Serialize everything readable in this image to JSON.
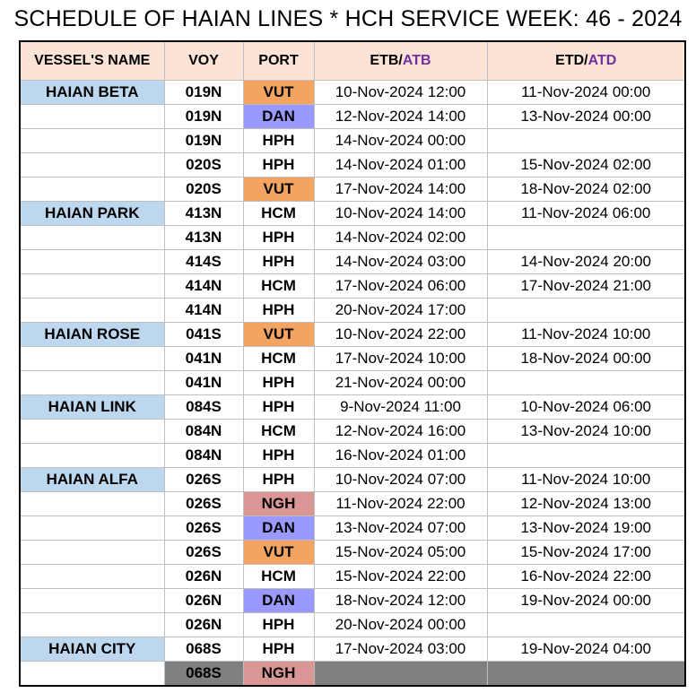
{
  "title": "SCHEDULE OF HAIAN LINES * HCH SERVICE WEEK: 46 - 2024",
  "colors": {
    "header_bg": "#fbe4d5",
    "vessel_bg": "#bdd7ee",
    "VUT": "#f4a460",
    "DAN": "#9999ff",
    "NGH": "#d99694",
    "blank_bg": "#808080",
    "atb_atd": "#7030a0"
  },
  "headers": {
    "vessel": "VESSEL'S NAME",
    "voy": "VOY",
    "port": "PORT",
    "etb": "ETB/",
    "atb": "ATB",
    "etd": "ETD/",
    "atd": "ATD"
  },
  "rows": [
    {
      "vessel": "HAIAN BETA",
      "voy": "019N",
      "port": "VUT",
      "etb": "10-Nov-2024 12:00",
      "etd": "11-Nov-2024 00:00"
    },
    {
      "vessel": "",
      "voy": "019N",
      "port": "DAN",
      "etb": "12-Nov-2024 14:00",
      "etd": "13-Nov-2024 00:00"
    },
    {
      "vessel": "",
      "voy": "019N",
      "port": "HPH",
      "etb": "14-Nov-2024 00:00",
      "etd": ""
    },
    {
      "vessel": "",
      "voy": "020S",
      "port": "HPH",
      "etb": "14-Nov-2024 01:00",
      "etd": "15-Nov-2024 02:00"
    },
    {
      "vessel": "",
      "voy": "020S",
      "port": "VUT",
      "etb": "17-Nov-2024 14:00",
      "etd": "18-Nov-2024 02:00"
    },
    {
      "vessel": "HAIAN PARK",
      "voy": "413N",
      "port": "HCM",
      "etb": "10-Nov-2024 14:00",
      "etd": "11-Nov-2024 06:00"
    },
    {
      "vessel": "",
      "voy": "413N",
      "port": "HPH",
      "etb": "14-Nov-2024 02:00",
      "etd": ""
    },
    {
      "vessel": "",
      "voy": "414S",
      "port": "HPH",
      "etb": "14-Nov-2024 03:00",
      "etd": "14-Nov-2024 20:00"
    },
    {
      "vessel": "",
      "voy": "414N",
      "port": "HCM",
      "etb": "17-Nov-2024 06:00",
      "etd": "17-Nov-2024 21:00"
    },
    {
      "vessel": "",
      "voy": "414N",
      "port": "HPH",
      "etb": "20-Nov-2024 17:00",
      "etd": ""
    },
    {
      "vessel": "HAIAN ROSE",
      "voy": "041S",
      "port": "VUT",
      "etb": "10-Nov-2024 22:00",
      "etd": "11-Nov-2024 10:00"
    },
    {
      "vessel": "",
      "voy": "041N",
      "port": "HCM",
      "etb": "17-Nov-2024 10:00",
      "etd": "18-Nov-2024 00:00"
    },
    {
      "vessel": "",
      "voy": "041N",
      "port": "HPH",
      "etb": "21-Nov-2024 00:00",
      "etd": ""
    },
    {
      "vessel": "HAIAN LINK",
      "voy": "084S",
      "port": "HPH",
      "etb": "9-Nov-2024 11:00",
      "etd": "10-Nov-2024 06:00"
    },
    {
      "vessel": "",
      "voy": "084N",
      "port": "HCM",
      "etb": "12-Nov-2024 16:00",
      "etd": "13-Nov-2024 10:00"
    },
    {
      "vessel": "",
      "voy": "084N",
      "port": "HPH",
      "etb": "16-Nov-2024 01:00",
      "etd": ""
    },
    {
      "vessel": "HAIAN ALFA",
      "voy": "026S",
      "port": "HPH",
      "etb": "10-Nov-2024 07:00",
      "etd": "11-Nov-2024 10:00"
    },
    {
      "vessel": "",
      "voy": "026S",
      "port": "NGH",
      "etb": "11-Nov-2024 22:00",
      "etd": "12-Nov-2024 13:00"
    },
    {
      "vessel": "",
      "voy": "026S",
      "port": "DAN",
      "etb": "13-Nov-2024 07:00",
      "etd": "13-Nov-2024 19:00"
    },
    {
      "vessel": "",
      "voy": "026S",
      "port": "VUT",
      "etb": "15-Nov-2024 05:00",
      "etd": "15-Nov-2024 17:00"
    },
    {
      "vessel": "",
      "voy": "026N",
      "port": "HCM",
      "etb": "15-Nov-2024 22:00",
      "etd": "16-Nov-2024 22:00"
    },
    {
      "vessel": "",
      "voy": "026N",
      "port": "DAN",
      "etb": "18-Nov-2024 12:00",
      "etd": "19-Nov-2024 00:00"
    },
    {
      "vessel": "",
      "voy": "026N",
      "port": "HPH",
      "etb": "20-Nov-2024 00:00",
      "etd": ""
    },
    {
      "vessel": "HAIAN CITY",
      "voy": "068S",
      "port": "HPH",
      "etb": "17-Nov-2024 03:00",
      "etd": "19-Nov-2024 04:00"
    },
    {
      "vessel": "",
      "voy": "068S",
      "port": "NGH",
      "etb": "",
      "etd": "",
      "grey": true
    }
  ]
}
